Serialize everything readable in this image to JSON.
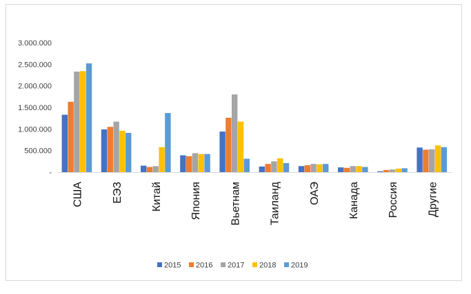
{
  "chart_data": {
    "type": "bar",
    "title": "",
    "xlabel": "",
    "ylabel": "",
    "ylim": [
      0,
      3000000
    ],
    "yticks": [
      0,
      500000,
      1000000,
      1500000,
      2000000,
      2500000,
      3000000
    ],
    "ytick_labels": [
      "-",
      "500.000",
      "1.000.000",
      "1.500.000",
      "2.000.000",
      "2.500.000",
      "3.000.000"
    ],
    "grid": false,
    "legend_position": "bottom",
    "categories": [
      "США",
      "ЕЭЗ",
      "Китай",
      "Япония",
      "Вьетнам",
      "Таиланд",
      "ОАЭ",
      "Канада",
      "Россия",
      "Другие"
    ],
    "series": [
      {
        "name": "2015",
        "color": "#4472c4",
        "values": [
          1330000,
          990000,
          150000,
          390000,
          940000,
          130000,
          140000,
          110000,
          20000,
          570000
        ]
      },
      {
        "name": "2016",
        "color": "#ed7d31",
        "values": [
          1630000,
          1050000,
          120000,
          370000,
          1260000,
          190000,
          160000,
          100000,
          50000,
          520000
        ]
      },
      {
        "name": "2017",
        "color": "#a5a5a5",
        "values": [
          2330000,
          1170000,
          140000,
          440000,
          1800000,
          250000,
          190000,
          140000,
          60000,
          530000
        ]
      },
      {
        "name": "2018",
        "color": "#ffc000",
        "values": [
          2340000,
          960000,
          580000,
          420000,
          1170000,
          320000,
          180000,
          140000,
          80000,
          620000
        ]
      },
      {
        "name": "2019",
        "color": "#5b9bd5",
        "values": [
          2520000,
          910000,
          1370000,
          420000,
          310000,
          210000,
          190000,
          120000,
          90000,
          580000
        ]
      }
    ]
  }
}
